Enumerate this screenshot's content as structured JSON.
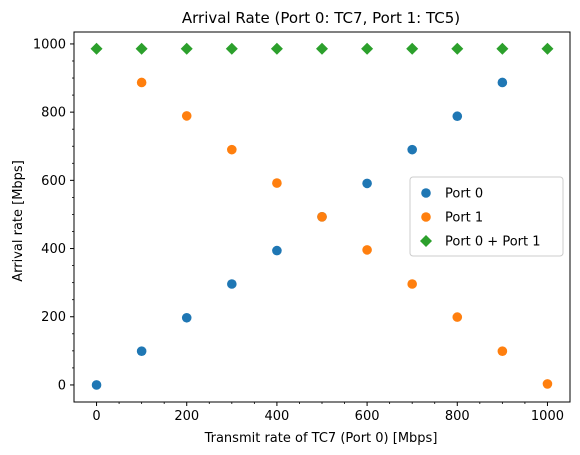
{
  "chart_data": {
    "type": "scatter",
    "title": "Arrival Rate (Port 0: TC7, Port 1: TC5)",
    "xlabel": "Transmit rate of TC7 (Port 0) [Mbps]",
    "ylabel": "Arrival rate [Mbps]",
    "xlim": [
      -50,
      1050
    ],
    "ylim": [
      -50,
      1035
    ],
    "xticks": [
      0,
      200,
      400,
      600,
      800,
      1000
    ],
    "yticks": [
      0,
      200,
      400,
      600,
      800,
      1000
    ],
    "grid": false,
    "legend_position": "center-right",
    "x": [
      0,
      100,
      200,
      300,
      400,
      500,
      600,
      700,
      800,
      900,
      1000
    ],
    "series": [
      {
        "name": "Port 0",
        "color": "#1f77b4",
        "marker": "circle",
        "points": [
          [
            0,
            0
          ],
          [
            100,
            99
          ],
          [
            200,
            197
          ],
          [
            300,
            296
          ],
          [
            400,
            394
          ],
          [
            500,
            493
          ],
          [
            600,
            591
          ],
          [
            700,
            690
          ],
          [
            800,
            788
          ],
          [
            900,
            887
          ]
        ]
      },
      {
        "name": "Port 1",
        "color": "#ff7f0e",
        "marker": "circle",
        "points": [
          [
            100,
            887
          ],
          [
            200,
            789
          ],
          [
            300,
            690
          ],
          [
            400,
            592
          ],
          [
            500,
            493
          ],
          [
            600,
            396
          ],
          [
            700,
            296
          ],
          [
            800,
            199
          ],
          [
            900,
            99
          ],
          [
            1000,
            3
          ]
        ]
      },
      {
        "name": "Port 0 + Port 1",
        "color": "#2ca02c",
        "marker": "diamond",
        "points": [
          [
            0,
            986
          ],
          [
            100,
            986
          ],
          [
            200,
            986
          ],
          [
            300,
            986
          ],
          [
            400,
            986
          ],
          [
            500,
            986
          ],
          [
            600,
            986
          ],
          [
            700,
            986
          ],
          [
            800,
            986
          ],
          [
            900,
            986
          ],
          [
            1000,
            986
          ]
        ]
      }
    ]
  }
}
